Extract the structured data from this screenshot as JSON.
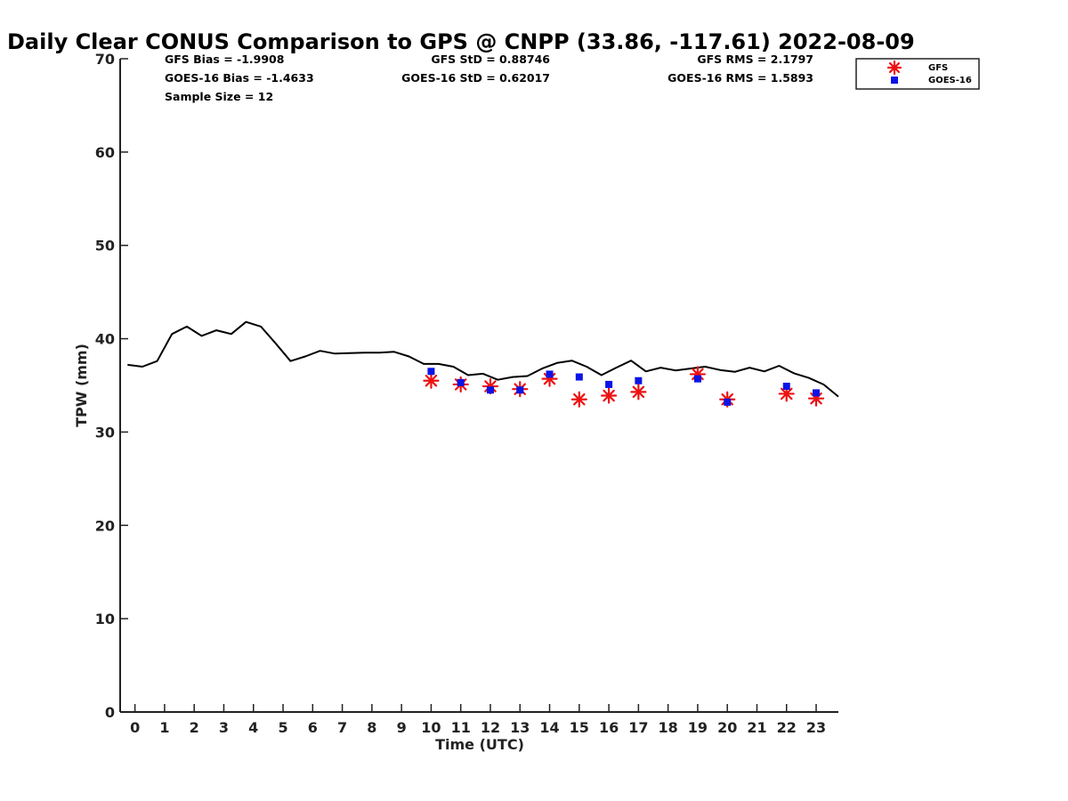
{
  "chart_data": {
    "type": "line",
    "title": "Daily Clear CONUS Comparison to GPS @ CNPP (33.86, -117.61) 2022-08-09",
    "xlabel": "Time (UTC)",
    "ylabel": "TPW (mm)",
    "xlim": [
      -0.5,
      23.75
    ],
    "ylim": [
      0,
      70
    ],
    "x_ticks": [
      0,
      1,
      2,
      3,
      4,
      5,
      6,
      7,
      8,
      9,
      10,
      11,
      12,
      13,
      14,
      15,
      16,
      17,
      18,
      19,
      20,
      21,
      22,
      23
    ],
    "y_ticks": [
      0,
      10,
      20,
      30,
      40,
      50,
      60,
      70
    ],
    "grid": false,
    "legend_position": "top-right",
    "stats": [
      "GFS Bias = -1.9908",
      "GFS StD = 0.88746",
      "GFS RMS = 2.1797",
      "GOES-16 Bias = -1.4633",
      "GOES-16 StD = 0.62017",
      "GOES-16 RMS = 1.5893",
      "Sample Size = 12"
    ],
    "series": [
      {
        "style": "line",
        "color": "#000000",
        "x": [
          -0.25,
          0.25,
          0.75,
          1.25,
          1.75,
          2.25,
          2.75,
          3.25,
          3.75,
          4.25,
          4.75,
          5.25,
          5.75,
          6.25,
          6.75,
          7.25,
          7.75,
          8.25,
          8.75,
          9.25,
          9.75,
          10.25,
          10.75,
          11.25,
          11.75,
          12.25,
          12.75,
          13.25,
          13.75,
          14.25,
          14.75,
          15.25,
          15.75,
          16.25,
          16.75,
          17.25,
          17.75,
          18.25,
          18.75,
          19.25,
          19.75,
          20.25,
          20.75,
          21.25,
          21.75,
          22.25,
          22.75,
          23.25,
          23.75
        ],
        "y": [
          37.2,
          37.0,
          37.6,
          40.5,
          41.3,
          40.3,
          40.9,
          40.5,
          41.8,
          41.3,
          39.5,
          37.6,
          38.1,
          38.7,
          38.4,
          38.45,
          38.5,
          38.5,
          38.6,
          38.1,
          37.3,
          37.3,
          37.0,
          36.1,
          36.25,
          35.6,
          35.9,
          36.0,
          36.8,
          37.4,
          37.65,
          37.0,
          36.1,
          36.9,
          37.65,
          36.5,
          36.9,
          36.6,
          36.8,
          37.0,
          36.65,
          36.45,
          36.9,
          36.5,
          37.1,
          36.3,
          35.8,
          35.1,
          33.8
        ]
      },
      {
        "name": "GFS",
        "style": "asterisk",
        "color": "#ee1111",
        "x": [
          10,
          11,
          12,
          13,
          14,
          15,
          16,
          17,
          19,
          20,
          22,
          23
        ],
        "y": [
          35.5,
          35.1,
          34.9,
          34.6,
          35.7,
          33.5,
          33.9,
          34.3,
          36.2,
          33.5,
          34.1,
          33.6
        ]
      },
      {
        "name": "GOES-16",
        "style": "square",
        "color": "#0a14e6",
        "x": [
          10,
          11,
          12,
          13,
          14,
          15,
          16,
          17,
          19,
          20,
          22,
          23
        ],
        "y": [
          36.5,
          35.3,
          34.5,
          34.5,
          36.2,
          35.9,
          35.1,
          35.5,
          35.7,
          33.2,
          34.9,
          34.2
        ]
      }
    ]
  }
}
